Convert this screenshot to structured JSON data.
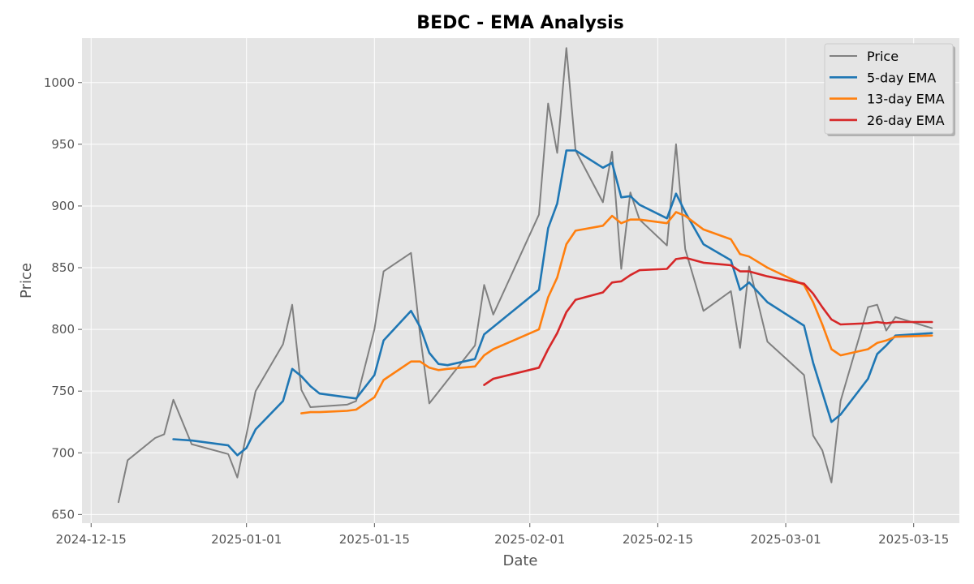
{
  "chart_data": {
    "type": "line",
    "title": "BEDC - EMA Analysis",
    "xlabel": "Date",
    "ylabel": "Price",
    "x_ticks": [
      "2024-12-15",
      "2025-01-01",
      "2025-01-15",
      "2025-02-01",
      "2025-02-15",
      "2025-03-01",
      "2025-03-15"
    ],
    "y_ticks": [
      "650",
      "700",
      "750",
      "800",
      "850",
      "900",
      "950",
      "1000"
    ],
    "ylim": [
      643,
      1036
    ],
    "xlim": [
      "2024-12-14",
      "2025-03-20"
    ],
    "grid": true,
    "legend_position": "top-right",
    "colors": {
      "background": "#e5e5e5",
      "grid": "#ffffff",
      "Price": "#808080",
      "5-day EMA": "#1f77b4",
      "13-day EMA": "#ff7f0e",
      "26-day EMA": "#d62728"
    },
    "series": [
      {
        "name": "Price",
        "points": [
          [
            "2024-12-18",
            660
          ],
          [
            "2024-12-19",
            694
          ],
          [
            "2024-12-22",
            712
          ],
          [
            "2024-12-23",
            715
          ],
          [
            "2024-12-24",
            743
          ],
          [
            "2024-12-26",
            707
          ],
          [
            "2024-12-30",
            699
          ],
          [
            "2024-12-31",
            680
          ],
          [
            "2025-01-02",
            750
          ],
          [
            "2025-01-05",
            788
          ],
          [
            "2025-01-06",
            820
          ],
          [
            "2025-01-07",
            751
          ],
          [
            "2025-01-08",
            737
          ],
          [
            "2025-01-12",
            739
          ],
          [
            "2025-01-13",
            742
          ],
          [
            "2025-01-15",
            800
          ],
          [
            "2025-01-16",
            847
          ],
          [
            "2025-01-19",
            862
          ],
          [
            "2025-01-20",
            795
          ],
          [
            "2025-01-21",
            740
          ],
          [
            "2025-01-26",
            787
          ],
          [
            "2025-01-27",
            836
          ],
          [
            "2025-01-28",
            812
          ],
          [
            "2025-02-02",
            893
          ],
          [
            "2025-02-03",
            983
          ],
          [
            "2025-02-04",
            943
          ],
          [
            "2025-02-05",
            1028
          ],
          [
            "2025-02-06",
            945
          ],
          [
            "2025-02-09",
            903
          ],
          [
            "2025-02-10",
            944
          ],
          [
            "2025-02-11",
            849
          ],
          [
            "2025-02-12",
            911
          ],
          [
            "2025-02-13",
            889
          ],
          [
            "2025-02-16",
            868
          ],
          [
            "2025-02-17",
            950
          ],
          [
            "2025-02-18",
            865
          ],
          [
            "2025-02-20",
            815
          ],
          [
            "2025-02-23",
            831
          ],
          [
            "2025-02-24",
            785
          ],
          [
            "2025-02-25",
            851
          ],
          [
            "2025-02-27",
            790
          ],
          [
            "2025-03-03",
            763
          ],
          [
            "2025-03-04",
            714
          ],
          [
            "2025-03-05",
            702
          ],
          [
            "2025-03-06",
            676
          ],
          [
            "2025-03-07",
            742
          ],
          [
            "2025-03-10",
            818
          ],
          [
            "2025-03-11",
            820
          ],
          [
            "2025-03-12",
            799
          ],
          [
            "2025-03-13",
            810
          ],
          [
            "2025-03-17",
            801
          ]
        ]
      },
      {
        "name": "5-day EMA",
        "points": [
          [
            "2024-12-24",
            711
          ],
          [
            "2024-12-26",
            710
          ],
          [
            "2024-12-30",
            706
          ],
          [
            "2024-12-31",
            698
          ],
          [
            "2025-01-01",
            704
          ],
          [
            "2025-01-02",
            719
          ],
          [
            "2025-01-05",
            742
          ],
          [
            "2025-01-06",
            768
          ],
          [
            "2025-01-07",
            762
          ],
          [
            "2025-01-08",
            754
          ],
          [
            "2025-01-09",
            748
          ],
          [
            "2025-01-12",
            745
          ],
          [
            "2025-01-13",
            744
          ],
          [
            "2025-01-15",
            763
          ],
          [
            "2025-01-16",
            791
          ],
          [
            "2025-01-19",
            815
          ],
          [
            "2025-01-20",
            802
          ],
          [
            "2025-01-21",
            781
          ],
          [
            "2025-01-22",
            772
          ],
          [
            "2025-01-23",
            771
          ],
          [
            "2025-01-26",
            776
          ],
          [
            "2025-01-27",
            796
          ],
          [
            "2025-02-02",
            832
          ],
          [
            "2025-02-03",
            882
          ],
          [
            "2025-02-04",
            902
          ],
          [
            "2025-02-05",
            945
          ],
          [
            "2025-02-06",
            945
          ],
          [
            "2025-02-09",
            931
          ],
          [
            "2025-02-10",
            935
          ],
          [
            "2025-02-11",
            907
          ],
          [
            "2025-02-12",
            908
          ],
          [
            "2025-02-13",
            901
          ],
          [
            "2025-02-16",
            890
          ],
          [
            "2025-02-17",
            910
          ],
          [
            "2025-02-18",
            895
          ],
          [
            "2025-02-20",
            869
          ],
          [
            "2025-02-23",
            856
          ],
          [
            "2025-02-24",
            832
          ],
          [
            "2025-02-25",
            838
          ],
          [
            "2025-02-27",
            822
          ],
          [
            "2025-03-03",
            803
          ],
          [
            "2025-03-04",
            773
          ],
          [
            "2025-03-06",
            725
          ],
          [
            "2025-03-07",
            731
          ],
          [
            "2025-03-10",
            760
          ],
          [
            "2025-03-11",
            780
          ],
          [
            "2025-03-12",
            787
          ],
          [
            "2025-03-13",
            795
          ],
          [
            "2025-03-17",
            797
          ]
        ]
      },
      {
        "name": "13-day EMA",
        "points": [
          [
            "2025-01-07",
            732
          ],
          [
            "2025-01-08",
            733
          ],
          [
            "2025-01-09",
            733
          ],
          [
            "2025-01-12",
            734
          ],
          [
            "2025-01-13",
            735
          ],
          [
            "2025-01-15",
            745
          ],
          [
            "2025-01-16",
            759
          ],
          [
            "2025-01-19",
            774
          ],
          [
            "2025-01-20",
            774
          ],
          [
            "2025-01-21",
            769
          ],
          [
            "2025-01-22",
            767
          ],
          [
            "2025-01-23",
            768
          ],
          [
            "2025-01-26",
            770
          ],
          [
            "2025-01-27",
            779
          ],
          [
            "2025-01-28",
            784
          ],
          [
            "2025-02-02",
            800
          ],
          [
            "2025-02-03",
            826
          ],
          [
            "2025-02-04",
            842
          ],
          [
            "2025-02-05",
            869
          ],
          [
            "2025-02-06",
            880
          ],
          [
            "2025-02-09",
            884
          ],
          [
            "2025-02-10",
            892
          ],
          [
            "2025-02-11",
            886
          ],
          [
            "2025-02-12",
            889
          ],
          [
            "2025-02-13",
            889
          ],
          [
            "2025-02-16",
            886
          ],
          [
            "2025-02-17",
            895
          ],
          [
            "2025-02-18",
            892
          ],
          [
            "2025-02-20",
            881
          ],
          [
            "2025-02-23",
            873
          ],
          [
            "2025-02-24",
            861
          ],
          [
            "2025-02-25",
            859
          ],
          [
            "2025-02-27",
            850
          ],
          [
            "2025-03-03",
            836
          ],
          [
            "2025-03-04",
            822
          ],
          [
            "2025-03-05",
            804
          ],
          [
            "2025-03-06",
            784
          ],
          [
            "2025-03-07",
            779
          ],
          [
            "2025-03-10",
            784
          ],
          [
            "2025-03-11",
            789
          ],
          [
            "2025-03-12",
            791
          ],
          [
            "2025-03-13",
            794
          ],
          [
            "2025-03-17",
            795
          ]
        ]
      },
      {
        "name": "26-day EMA",
        "points": [
          [
            "2025-01-27",
            755
          ],
          [
            "2025-01-28",
            760
          ],
          [
            "2025-02-02",
            769
          ],
          [
            "2025-02-03",
            784
          ],
          [
            "2025-02-04",
            797
          ],
          [
            "2025-02-05",
            814
          ],
          [
            "2025-02-06",
            824
          ],
          [
            "2025-02-09",
            830
          ],
          [
            "2025-02-10",
            838
          ],
          [
            "2025-02-11",
            839
          ],
          [
            "2025-02-12",
            844
          ],
          [
            "2025-02-13",
            848
          ],
          [
            "2025-02-16",
            849
          ],
          [
            "2025-02-17",
            857
          ],
          [
            "2025-02-18",
            858
          ],
          [
            "2025-02-20",
            854
          ],
          [
            "2025-02-23",
            852
          ],
          [
            "2025-02-24",
            847
          ],
          [
            "2025-02-25",
            847
          ],
          [
            "2025-02-27",
            843
          ],
          [
            "2025-03-03",
            837
          ],
          [
            "2025-03-04",
            829
          ],
          [
            "2025-03-05",
            818
          ],
          [
            "2025-03-06",
            808
          ],
          [
            "2025-03-07",
            804
          ],
          [
            "2025-03-10",
            805
          ],
          [
            "2025-03-11",
            806
          ],
          [
            "2025-03-12",
            805
          ],
          [
            "2025-03-13",
            806
          ],
          [
            "2025-03-17",
            806
          ]
        ]
      }
    ]
  }
}
